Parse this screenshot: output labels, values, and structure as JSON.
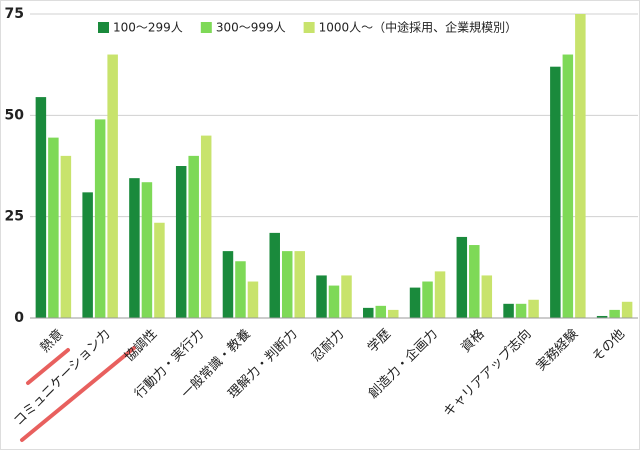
{
  "chart_data": {
    "type": "bar",
    "categories": [
      "熱意",
      "コミュニケーション力",
      "協調性",
      "行動力・実行力",
      "一般常識・教養",
      "理解力・判断力",
      "忍耐力",
      "学歴",
      "創造力・企画力",
      "資格",
      "キャリアアップ志向",
      "実務経験",
      "その他"
    ],
    "series": [
      {
        "name": "100〜299人",
        "color": "#1a8a3c",
        "values": [
          54.5,
          31,
          34.5,
          37.5,
          16.5,
          21,
          10.5,
          2.5,
          7.5,
          20,
          3.5,
          62,
          0.5
        ]
      },
      {
        "name": "300〜999人",
        "color": "#7ed957",
        "values": [
          44.5,
          49,
          33.5,
          40,
          14,
          16.5,
          8,
          3,
          9,
          18,
          3.5,
          65,
          2
        ]
      },
      {
        "name": "1000人〜（中途採用、企業規模別）",
        "color": "#c8e36c",
        "values": [
          40,
          65,
          23.5,
          45,
          9,
          16.5,
          10.5,
          2,
          11.5,
          10.5,
          4.5,
          75,
          4
        ]
      }
    ],
    "ylim": [
      0,
      75
    ],
    "yticks": [
      0,
      25,
      50,
      75
    ],
    "grid": true,
    "legend": "top"
  }
}
